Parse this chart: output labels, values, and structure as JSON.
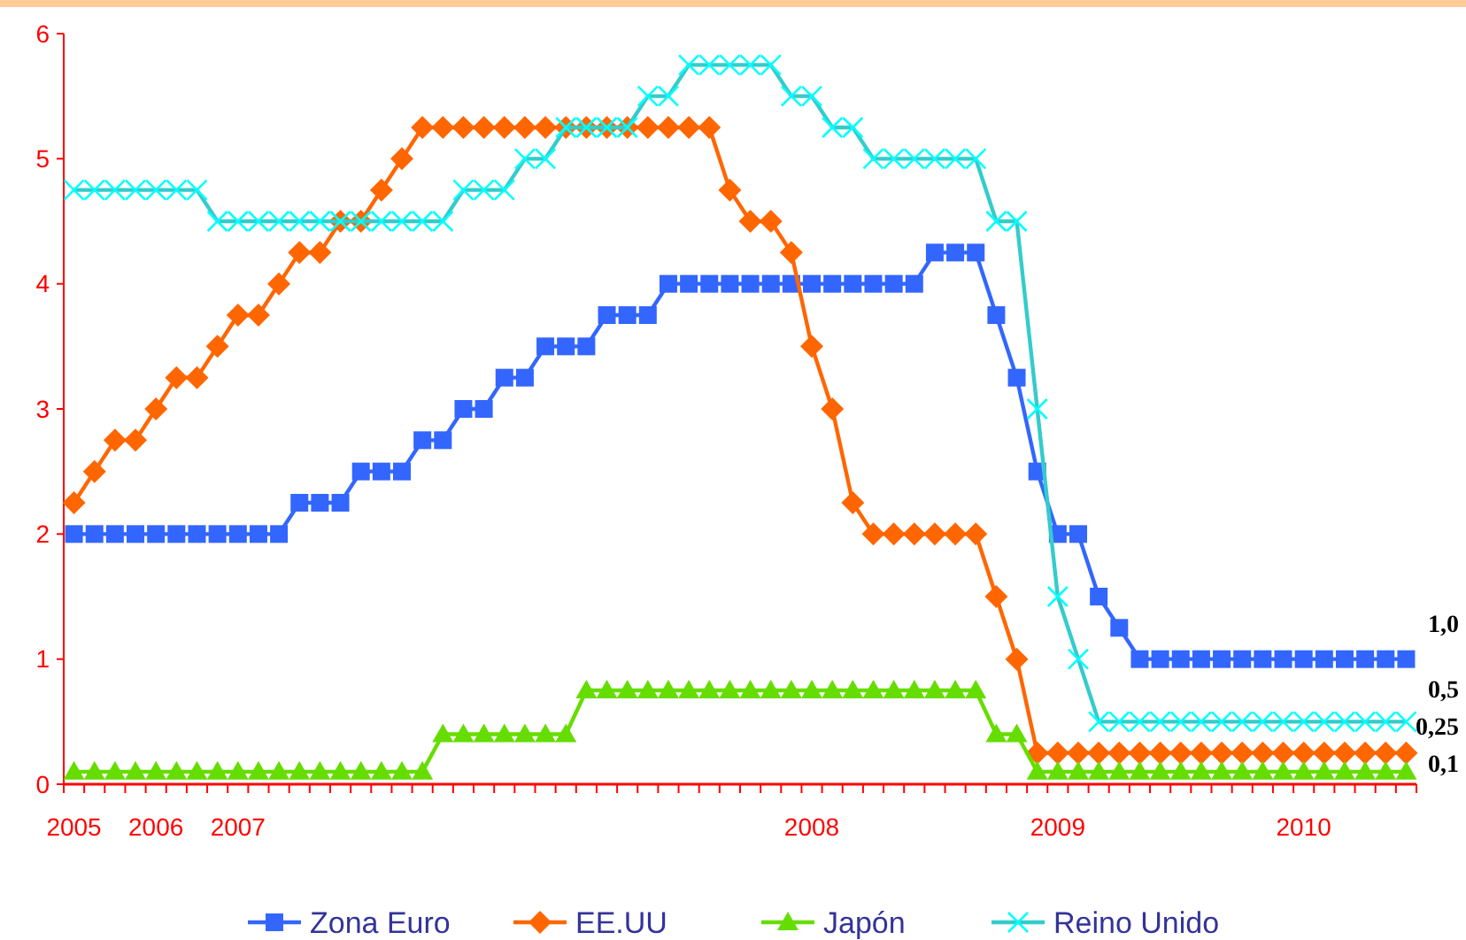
{
  "chart_data": {
    "type": "line",
    "categories": [
      "2005",
      null,
      null,
      null,
      "2006",
      null,
      null,
      null,
      "2007",
      null,
      null,
      null,
      null,
      null,
      null,
      null,
      null,
      null,
      null,
      null,
      null,
      null,
      null,
      null,
      null,
      null,
      null,
      null,
      null,
      null,
      null,
      null,
      null,
      null,
      null,
      null,
      "2008",
      null,
      null,
      null,
      null,
      null,
      null,
      null,
      null,
      null,
      null,
      null,
      "2009",
      null,
      null,
      null,
      null,
      null,
      null,
      null,
      null,
      null,
      null,
      null,
      "2010",
      null,
      null,
      null,
      null,
      null
    ],
    "series": [
      {
        "name": "Zona Euro",
        "color": "#3366ff",
        "marker": "square",
        "values": [
          2,
          2,
          2,
          2,
          2,
          2,
          2,
          2,
          2,
          2,
          2,
          2.25,
          2.25,
          2.25,
          2.5,
          2.5,
          2.5,
          2.75,
          2.75,
          3,
          3,
          3.25,
          3.25,
          3.5,
          3.5,
          3.5,
          3.75,
          3.75,
          3.75,
          4,
          4,
          4,
          4,
          4,
          4,
          4,
          4,
          4,
          4,
          4,
          4,
          4,
          4.25,
          4.25,
          4.25,
          3.75,
          3.25,
          2.5,
          2,
          2,
          1.5,
          1.25,
          1,
          1,
          1,
          1,
          1,
          1,
          1,
          1,
          1,
          1,
          1,
          1,
          1,
          1
        ]
      },
      {
        "name": "EE.UU",
        "color": "#ff6600",
        "marker": "diamond",
        "values": [
          2.25,
          2.5,
          2.75,
          2.75,
          3,
          3.25,
          3.25,
          3.5,
          3.75,
          3.75,
          4,
          4.25,
          4.25,
          4.5,
          4.5,
          4.75,
          5,
          5.25,
          5.25,
          5.25,
          5.25,
          5.25,
          5.25,
          5.25,
          5.25,
          5.25,
          5.25,
          5.25,
          5.25,
          5.25,
          5.25,
          5.25,
          4.75,
          4.5,
          4.5,
          4.25,
          3.5,
          3,
          2.25,
          2,
          2,
          2,
          2,
          2,
          2,
          1.5,
          1,
          0.25,
          0.25,
          0.25,
          0.25,
          0.25,
          0.25,
          0.25,
          0.25,
          0.25,
          0.25,
          0.25,
          0.25,
          0.25,
          0.25,
          0.25,
          0.25,
          0.25,
          0.25,
          0.25
        ]
      },
      {
        "name": "Japón",
        "color": "#66dd00",
        "marker": "triangle",
        "values": [
          0.1,
          0.1,
          0.1,
          0.1,
          0.1,
          0.1,
          0.1,
          0.1,
          0.1,
          0.1,
          0.1,
          0.1,
          0.1,
          0.1,
          0.1,
          0.1,
          0.1,
          0.1,
          0.4,
          0.4,
          0.4,
          0.4,
          0.4,
          0.4,
          0.4,
          0.75,
          0.75,
          0.75,
          0.75,
          0.75,
          0.75,
          0.75,
          0.75,
          0.75,
          0.75,
          0.75,
          0.75,
          0.75,
          0.75,
          0.75,
          0.75,
          0.75,
          0.75,
          0.75,
          0.75,
          0.4,
          0.4,
          0.1,
          0.1,
          0.1,
          0.1,
          0.1,
          0.1,
          0.1,
          0.1,
          0.1,
          0.1,
          0.1,
          0.1,
          0.1,
          0.1,
          0.1,
          0.1,
          0.1,
          0.1,
          0.1
        ]
      },
      {
        "name": "Reino Unido",
        "color": "#33cccc",
        "marker": "cross",
        "values": [
          4.75,
          4.75,
          4.75,
          4.75,
          4.75,
          4.75,
          4.75,
          4.5,
          4.5,
          4.5,
          4.5,
          4.5,
          4.5,
          4.5,
          4.5,
          4.5,
          4.5,
          4.5,
          4.5,
          4.75,
          4.75,
          4.75,
          5,
          5,
          5.25,
          5.25,
          5.25,
          5.25,
          5.5,
          5.5,
          5.75,
          5.75,
          5.75,
          5.75,
          5.75,
          5.5,
          5.5,
          5.25,
          5.25,
          5,
          5,
          5,
          5,
          5,
          5,
          4.5,
          4.5,
          3,
          1.5,
          1,
          0.5,
          0.5,
          0.5,
          0.5,
          0.5,
          0.5,
          0.5,
          0.5,
          0.5,
          0.5,
          0.5,
          0.5,
          0.5,
          0.5,
          0.5,
          0.5
        ]
      }
    ],
    "ylim": [
      0,
      6
    ],
    "yticks": [
      0,
      1,
      2,
      3,
      4,
      5,
      6
    ],
    "grid": false,
    "legend": "bottom",
    "line_style": "solid",
    "annotations": [
      "1,0",
      "0,5",
      "0,25",
      "0,1"
    ]
  }
}
